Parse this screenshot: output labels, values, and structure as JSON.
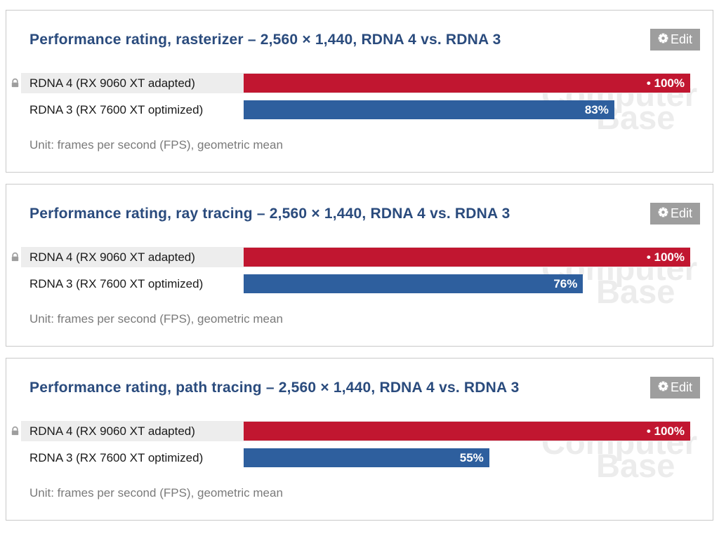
{
  "ui": {
    "edit_label": "Edit",
    "icons": {
      "edit_button_icon": "gear-icon",
      "baseline_row_icon": "lock-icon"
    },
    "watermark": {
      "line1": "Computer",
      "line2": "Base"
    }
  },
  "colors": {
    "title_blue": "#2a4b7d",
    "bar_red": "#c11630",
    "bar_blue": "#2e5f9e",
    "row_highlight_gray": "#ededed",
    "edit_button_gray": "#9e9e9e",
    "unit_text_gray": "#7a7a7a",
    "panel_border": "#c9c9c9",
    "watermark_gray": "#ececec"
  },
  "chart_data": [
    {
      "type": "bar",
      "orientation": "horizontal",
      "title": "Performance rating, rasterizer – 2,560 × 1,440, RDNA 4 vs. RDNA 3",
      "categories": [
        "RDNA 4 (RX 9060 XT adapted)",
        "RDNA 3 (RX 7600 XT optimized)"
      ],
      "values": [
        100,
        83
      ],
      "value_labels": [
        "• 100%",
        "83%"
      ],
      "bar_colors": [
        "#c11630",
        "#2e5f9e"
      ],
      "xlim": [
        0,
        100
      ],
      "locked_rows": [
        0
      ],
      "highlighted_rows": [
        0
      ],
      "unit_note": "Unit: frames per second (FPS), geometric mean",
      "grid": false,
      "legend": "none"
    },
    {
      "type": "bar",
      "orientation": "horizontal",
      "title": "Performance rating, ray tracing – 2,560 × 1,440, RDNA 4 vs. RDNA 3",
      "categories": [
        "RDNA 4 (RX 9060 XT adapted)",
        "RDNA 3 (RX 7600 XT optimized)"
      ],
      "values": [
        100,
        76
      ],
      "value_labels": [
        "• 100%",
        "76%"
      ],
      "bar_colors": [
        "#c11630",
        "#2e5f9e"
      ],
      "xlim": [
        0,
        100
      ],
      "locked_rows": [
        0
      ],
      "highlighted_rows": [
        0
      ],
      "unit_note": "Unit: frames per second (FPS), geometric mean",
      "grid": false,
      "legend": "none"
    },
    {
      "type": "bar",
      "orientation": "horizontal",
      "title": "Performance rating, path tracing – 2,560 × 1,440, RDNA 4 vs. RDNA 3",
      "categories": [
        "RDNA 4 (RX 9060 XT adapted)",
        "RDNA 3 (RX 7600 XT optimized)"
      ],
      "values": [
        100,
        55
      ],
      "value_labels": [
        "• 100%",
        "55%"
      ],
      "bar_colors": [
        "#c11630",
        "#2e5f9e"
      ],
      "xlim": [
        0,
        100
      ],
      "locked_rows": [
        0
      ],
      "highlighted_rows": [
        0
      ],
      "unit_note": "Unit: frames per second (FPS), geometric mean",
      "grid": false,
      "legend": "none"
    }
  ]
}
